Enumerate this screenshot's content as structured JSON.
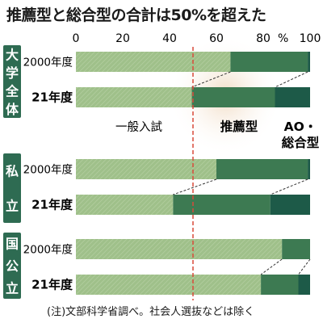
{
  "title": "推薦型と総合型の合計は50%を超えた",
  "note": "(注)文部科学省調べ。社会人選抜などは除く",
  "colors": {
    "general": "#9fc08a",
    "recommendation": "#3d7a52",
    "ao": "#1d5a48",
    "highlight_line": "#d94a3a",
    "tag_bg": "#2e6b52"
  },
  "chart_data": {
    "type": "bar",
    "orientation": "horizontal",
    "stacked": true,
    "xlim": [
      0,
      100
    ],
    "xticks": [
      "0",
      "20",
      "40",
      "60",
      "80",
      "100"
    ],
    "x_unit": "%",
    "reference_line": 50,
    "series": [
      {
        "name": "一般入試"
      },
      {
        "name": "推薦型"
      },
      {
        "name": "AO・総合型"
      }
    ],
    "legend": [
      "一般入試",
      "推薦型",
      "AO・\n総合型"
    ],
    "groups": [
      {
        "name": "大学全体",
        "bars": [
          {
            "label": "2000年度",
            "values": [
              66,
              33,
              1
            ]
          },
          {
            "label": "21年度",
            "values": [
              49.5,
              35.5,
              15
            ]
          }
        ]
      },
      {
        "name": "私立",
        "bars": [
          {
            "label": "2000年度",
            "values": [
              60,
              39,
              1
            ]
          },
          {
            "label": "21年度",
            "values": [
              41.5,
              41.5,
              17
            ]
          }
        ]
      },
      {
        "name": "国公立",
        "bars": [
          {
            "label": "2000年度",
            "values": [
              88,
              12,
              0
            ]
          },
          {
            "label": "21年度",
            "values": [
              79,
              16,
              5
            ]
          }
        ]
      }
    ]
  }
}
